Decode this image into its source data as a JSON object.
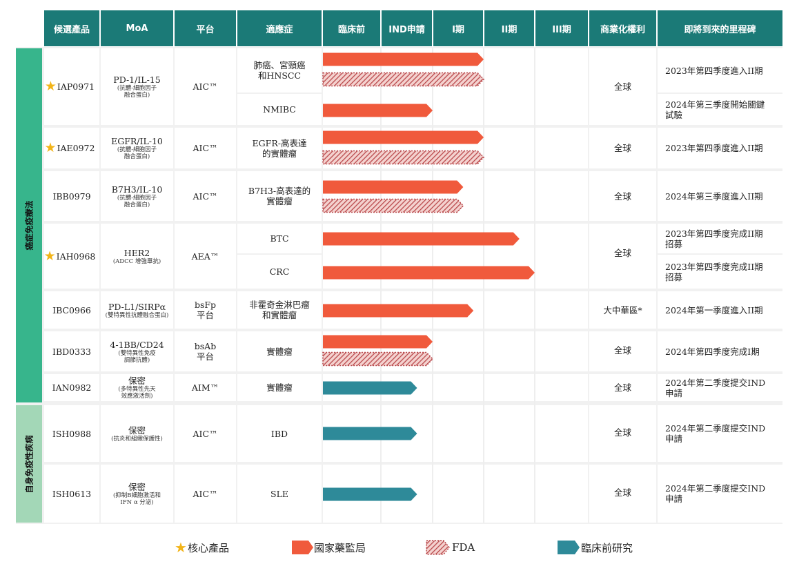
{
  "headers": {
    "candidate": "候選產品",
    "moa": "MoA",
    "platform": "平台",
    "indication": "適應症",
    "preclinical": "臨床前",
    "ind": "IND申請",
    "phase1": "I期",
    "phase2": "II期",
    "phase3": "III期",
    "rights": "商業化權利",
    "milestone": "即將到來的里程碑"
  },
  "sections": {
    "oncology": "癌症免疫療法",
    "autoimmune": "自身免疫性疾病"
  },
  "colors": {
    "header": "#1b7a77",
    "oncology": "#37b58c",
    "autoimmune": "#a3d7b7",
    "nmpa": "#f05a3c",
    "fda": "#b9494c",
    "preclinical": "#2e8a99",
    "star": "#f2b418"
  },
  "stage_order": [
    "臨床前",
    "IND申請",
    "I期",
    "II期",
    "III期"
  ],
  "products": [
    {
      "name": "IAP0971",
      "core": true,
      "moa": "PD-1/IL-15",
      "moa_sub1": "(抗體-細胞因子",
      "moa_sub2": "融合蛋白)",
      "platform": "AIC™",
      "platform2": "",
      "rights": "全球"
    },
    {
      "name": "IAE0972",
      "core": true,
      "moa": "EGFR/IL-10",
      "moa_sub1": "(抗體-細胞因子",
      "moa_sub2": "融合蛋白)",
      "platform": "AIC™",
      "platform2": "",
      "rights": "全球"
    },
    {
      "name": "IBB0979",
      "core": false,
      "moa": "B7H3/IL-10",
      "moa_sub1": "(抗體-細胞因子",
      "moa_sub2": "融合蛋白)",
      "platform": "AIC™",
      "platform2": "",
      "rights": "全球"
    },
    {
      "name": "IAH0968",
      "core": true,
      "moa": "HER2",
      "moa_sub1": "(ADCC 增強單抗)",
      "moa_sub2": "",
      "platform": "AEA™",
      "platform2": "",
      "rights": "全球"
    },
    {
      "name": "IBC0966",
      "core": false,
      "moa": "PD-L1/SIRPα",
      "moa_sub1": "(雙特異性抗體融合蛋白)",
      "moa_sub2": "",
      "platform": "bsFp",
      "platform2": "平台",
      "rights": "大中華區*"
    },
    {
      "name": "IBD0333",
      "core": false,
      "moa": "4-1BB/CD24",
      "moa_sub1": "(雙特異性免疫",
      "moa_sub2": "調節抗體)",
      "platform": "bsAb",
      "platform2": "平台",
      "rights": "全球"
    },
    {
      "name": "IAN0982",
      "core": false,
      "moa": "保密",
      "moa_sub1": "(多特異性先天",
      "moa_sub2": "效應激活劑)",
      "platform": "AIM™",
      "platform2": "",
      "rights": "全球"
    },
    {
      "name": "ISH0988",
      "core": false,
      "moa": "保密",
      "moa_sub1": "(抗炎和組織保護性)",
      "moa_sub2": "",
      "platform": "AIC™",
      "platform2": "",
      "rights": "全球"
    },
    {
      "name": "ISH0613",
      "core": false,
      "moa": "保密",
      "moa_sub1": "(抑制B細胞激活和",
      "moa_sub2": "IFN α 分泌)",
      "platform": "AIC™",
      "platform2": "",
      "rights": "全球"
    }
  ],
  "indications": [
    {
      "label1": "肺癌、宮頸癌",
      "label2": "和HNSCC",
      "milestone1": "2023年第四季度進入II期",
      "milestone2": ""
    },
    {
      "label1": "NMIBC",
      "label2": "",
      "milestone1": "2024年第三季度開始關鍵",
      "milestone2": "試驗"
    },
    {
      "label1": "EGFR-高表達",
      "label2": "的實體瘤",
      "milestone1": "2023年第四季度進入II期",
      "milestone2": ""
    },
    {
      "label1": "B7H3-高表達的",
      "label2": "實體瘤",
      "milestone1": "2024年第三季度進入II期",
      "milestone2": ""
    },
    {
      "label1": "BTC",
      "label2": "",
      "milestone1": "2023年第四季度完成II期",
      "milestone2": "招募"
    },
    {
      "label1": "CRC",
      "label2": "",
      "milestone1": "2023年第四季度完成II期",
      "milestone2": "招募"
    },
    {
      "label1": "非霍奇金淋巴瘤",
      "label2": "和實體瘤",
      "milestone1": "2024年第一季度進入II期",
      "milestone2": ""
    },
    {
      "label1": "實體瘤",
      "label2": "",
      "milestone1": "2024年第四季度完成I期",
      "milestone2": ""
    },
    {
      "label1": "實體瘤",
      "label2": "",
      "milestone1": "2024年第二季度提交IND",
      "milestone2": "申請"
    },
    {
      "label1": "IBD",
      "label2": "",
      "milestone1": "2024年第二季度提交IND",
      "milestone2": "申請"
    },
    {
      "label1": "SLE",
      "label2": "",
      "milestone1": "2024年第二季度提交IND",
      "milestone2": "申請"
    }
  ],
  "chart_data": {
    "type": "bar",
    "orientation": "horizontal",
    "x_axis": "development stage",
    "stage_order": [
      "臨床前",
      "IND申請",
      "I期",
      "II期",
      "III期"
    ],
    "note": "values = development progress in stage units (1 = through 臨床前, 2 = through IND申請, 3 = through I期, 4 = through II期)",
    "series": [
      {
        "name": "國家藥監局",
        "color": "#f05a3c",
        "values": [
          3.0,
          2.0,
          3.0,
          2.6,
          3.7,
          4.0,
          2.8,
          2.0,
          null,
          null,
          null
        ]
      },
      {
        "name": "FDA",
        "color": "#b9494c",
        "values": [
          3.0,
          null,
          3.0,
          2.6,
          null,
          null,
          null,
          2.0,
          null,
          null,
          null
        ]
      },
      {
        "name": "臨床前研究",
        "color": "#2e8a99",
        "values": [
          null,
          null,
          null,
          null,
          null,
          null,
          null,
          null,
          1.7,
          1.7,
          1.7
        ]
      }
    ]
  },
  "legend": {
    "core": "核心產品",
    "nmpa": "國家藥監局",
    "fda": "FDA",
    "preclinical": "臨床前研究"
  }
}
